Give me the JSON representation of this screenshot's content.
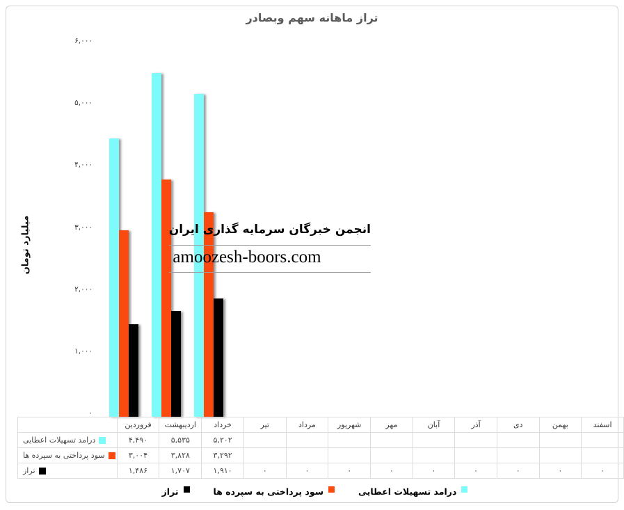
{
  "title": "تراز ماهانه سهم وبصادر",
  "watermark": {
    "line1": "انجمن خبرگان سرمایه گذاری ایران",
    "line2": "amoozesh-boors.com"
  },
  "chart_data": {
    "type": "bar",
    "title": "تراز ماهانه سهم وبصادر",
    "xlabel": "",
    "ylabel": "میلیارد تومان",
    "ylim": [
      0,
      6000
    ],
    "ytick_step": 1000,
    "ytick_labels": [
      "۰",
      "۱,۰۰۰",
      "۲,۰۰۰",
      "۳,۰۰۰",
      "۴,۰۰۰",
      "۵,۰۰۰",
      "۶,۰۰۰"
    ],
    "grid": false,
    "legend_position": "bottom",
    "categories": [
      "فروردین",
      "اردیبهشت",
      "خرداد",
      "تیر",
      "مرداد",
      "شهریور",
      "مهر",
      "آبان",
      "آذر",
      "دی",
      "بهمن",
      "اسفند"
    ],
    "series": [
      {
        "key": "facilities-income",
        "name": "درامد تسهیلات اعطایی",
        "color": "#7DFBFB",
        "values": [
          4490,
          5535,
          5202,
          null,
          null,
          null,
          null,
          null,
          null,
          null,
          null,
          null
        ],
        "display": [
          "۴,۴۹۰",
          "۵,۵۳۵",
          "۵,۲۰۲",
          "",
          "",
          "",
          "",
          "",
          "",
          "",
          "",
          ""
        ]
      },
      {
        "key": "deposit-interest",
        "name": "سود پرداختی به سپرده ها",
        "color": "#FB4A10",
        "values": [
          3004,
          3828,
          3292,
          null,
          null,
          null,
          null,
          null,
          null,
          null,
          null,
          null
        ],
        "display": [
          "۳,۰۰۴",
          "۳,۸۲۸",
          "۳,۲۹۲",
          "",
          "",
          "",
          "",
          "",
          "",
          "",
          "",
          ""
        ]
      },
      {
        "key": "balance",
        "name": "تراز",
        "color": "#000000",
        "values": [
          1486,
          1707,
          1910,
          0,
          0,
          0,
          0,
          0,
          0,
          0,
          0,
          0
        ],
        "display": [
          "۱,۴۸۶",
          "۱,۷۰۷",
          "۱,۹۱۰",
          "۰",
          "۰",
          "۰",
          "۰",
          "۰",
          "۰",
          "۰",
          "۰",
          "۰"
        ]
      }
    ],
    "legend_display_order": [
      2,
      1,
      0
    ]
  }
}
